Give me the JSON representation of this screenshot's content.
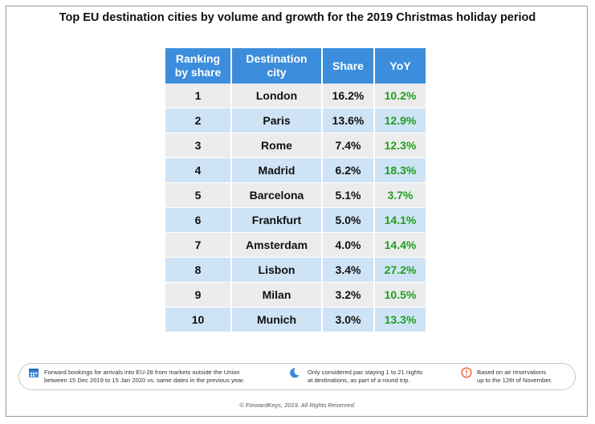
{
  "title": "Top EU destination cities by volume and growth for the 2019 Christmas holiday period",
  "table": {
    "headers": {
      "rank": [
        "Ranking",
        "by share"
      ],
      "city": [
        "Destination",
        "city"
      ],
      "share": "Share",
      "yoy": "YoY"
    },
    "rows": [
      {
        "rank": "1",
        "city": "London",
        "share": "16.2%",
        "yoy": "10.2%"
      },
      {
        "rank": "2",
        "city": "Paris",
        "share": "13.6%",
        "yoy": "12.9%"
      },
      {
        "rank": "3",
        "city": "Rome",
        "share": "7.4%",
        "yoy": "12.3%"
      },
      {
        "rank": "4",
        "city": "Madrid",
        "share": "6.2%",
        "yoy": "18.3%"
      },
      {
        "rank": "5",
        "city": "Barcelona",
        "share": "5.1%",
        "yoy": "3.7%"
      },
      {
        "rank": "6",
        "city": "Frankfurt",
        "share": "5.0%",
        "yoy": "14.1%"
      },
      {
        "rank": "7",
        "city": "Amsterdam",
        "share": "4.0%",
        "yoy": "14.4%"
      },
      {
        "rank": "8",
        "city": "Lisbon",
        "share": "3.4%",
        "yoy": "27.2%"
      },
      {
        "rank": "9",
        "city": "Milan",
        "share": "3.2%",
        "yoy": "10.5%"
      },
      {
        "rank": "10",
        "city": "Munich",
        "share": "3.0%",
        "yoy": "13.3%"
      }
    ]
  },
  "legend": {
    "bookings": [
      "Forward bookings for arrivals into EU-28 from markets outside the Union",
      "between 15 Dec 2019 to 15 Jan 2020 vs. same dates in the previous year."
    ],
    "pax": [
      "Only considered pax staying 1 to 21 nights",
      "at destinations, as part of a round trip."
    ],
    "reservations": [
      "Based on air reservations",
      "up to the 12th of November."
    ],
    "icons": {
      "bookings": "calendar-icon",
      "pax": "moon-icon",
      "reservations": "info-icon"
    }
  },
  "footer": "© ForwardKeys, 2019. All Rights Reserved.",
  "colors": {
    "header_bg": "#3c8ddb",
    "row_odd": "#ececec",
    "row_even": "#cfe3f6",
    "yoy_green": "#1f9e1f",
    "icon_blue": "#3c8ddb",
    "icon_orange": "#e8642c"
  }
}
